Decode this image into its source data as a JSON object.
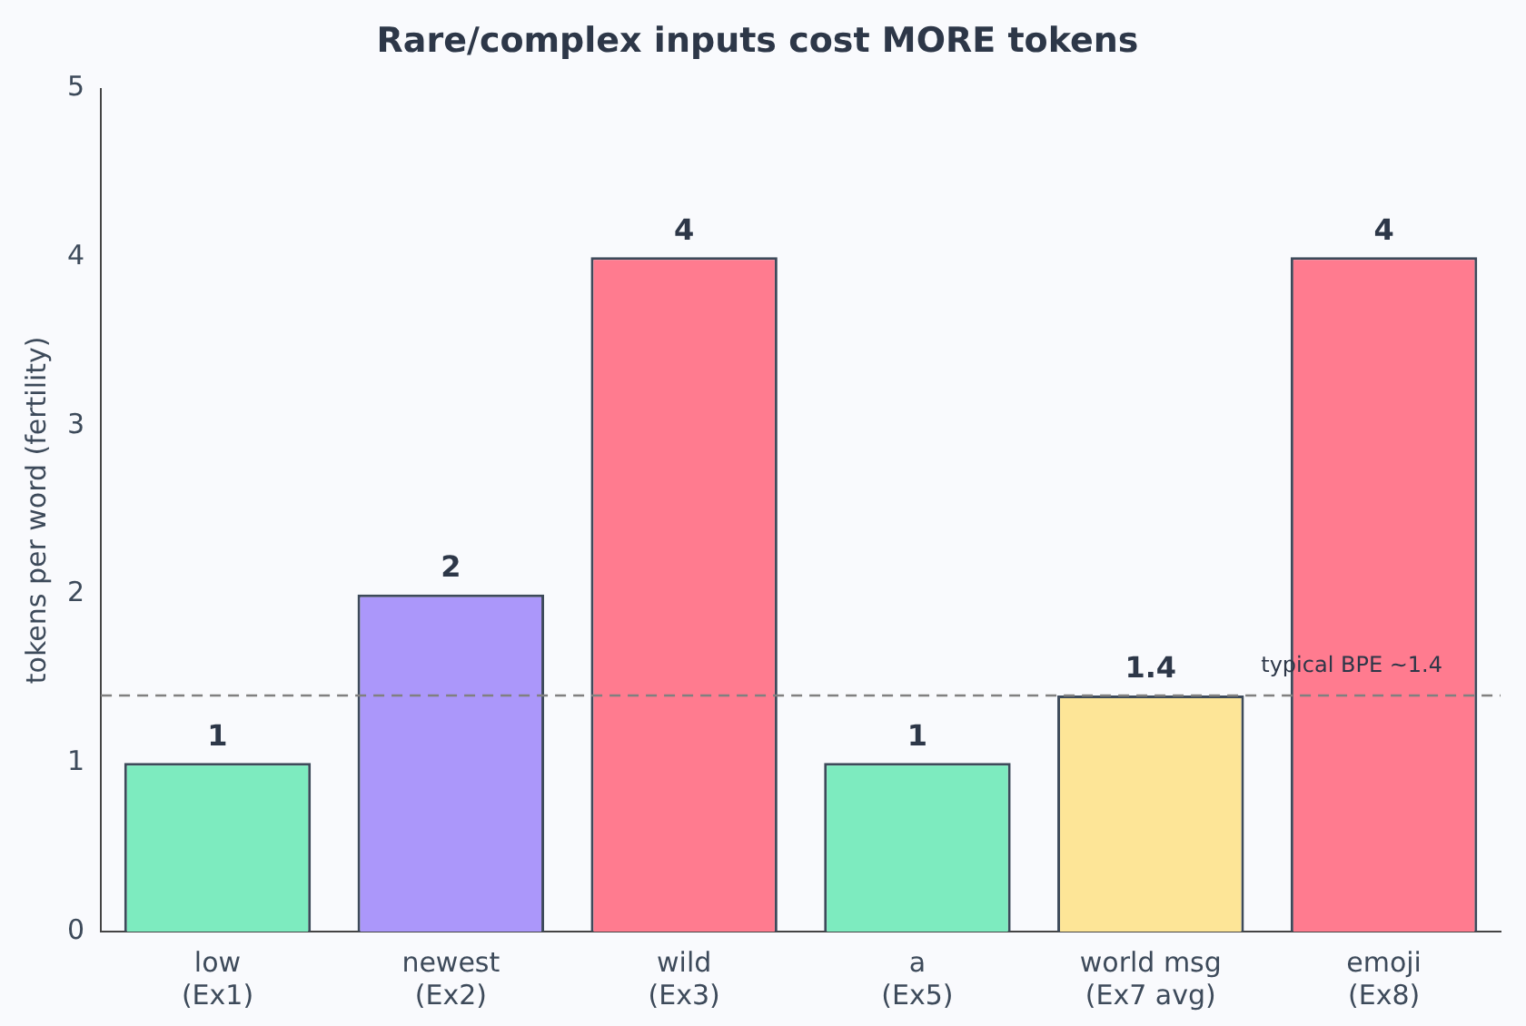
{
  "chart_data": {
    "type": "bar",
    "title": "Rare/complex inputs cost MORE tokens",
    "ylabel": "tokens per word (fertility)",
    "categories": [
      "low\n(Ex1)",
      "newest\n(Ex2)",
      "wild\n(Ex3)",
      "a\n(Ex5)",
      "world msg\n(Ex7 avg)",
      "emoji\n(Ex8)"
    ],
    "values": [
      1,
      2,
      4,
      1,
      1.4,
      4
    ],
    "colors": [
      "#7debbf",
      "#ab97fa",
      "#ff7b8f",
      "#7debbf",
      "#fde597",
      "#ff7b8f"
    ],
    "ylim": [
      0,
      5
    ],
    "yticks": [
      0,
      1,
      2,
      3,
      4,
      5
    ],
    "grid": false,
    "legend": false,
    "data_labels": true,
    "ref_lines": [
      {
        "axis": "y",
        "value": 1.4,
        "label": "typical BPE ~1.4",
        "color": "#808080",
        "line_style": "dashed"
      }
    ]
  }
}
